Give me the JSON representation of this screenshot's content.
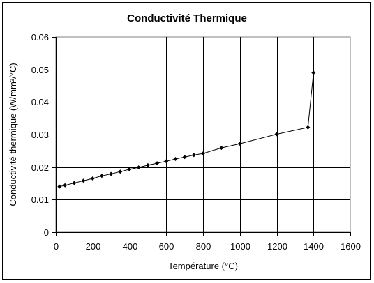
{
  "chart_data": {
    "type": "line",
    "title": "Conductivité Thermique",
    "xlabel": "Température (°C)",
    "ylabel": "Conductivité thermique (W/mm²/°C)",
    "xlim": [
      0,
      1600
    ],
    "ylim": [
      0,
      0.06
    ],
    "x_ticks": [
      0,
      200,
      400,
      600,
      800,
      1000,
      1200,
      1400,
      1600
    ],
    "y_ticks": [
      0,
      0.01,
      0.02,
      0.03,
      0.04,
      0.05,
      0.06
    ],
    "x_tick_labels": [
      "0",
      "200",
      "400",
      "600",
      "800",
      "1000",
      "1200",
      "1400",
      "1600"
    ],
    "y_tick_labels": [
      "0",
      "0.01",
      "0.02",
      "0.03",
      "0.04",
      "0.05",
      "0.06"
    ],
    "grid": true,
    "legend": "none",
    "series": [
      {
        "color": "#000000",
        "marker": "diamond",
        "points": [
          {
            "x": 20,
            "y": 0.014
          },
          {
            "x": 50,
            "y": 0.0144
          },
          {
            "x": 100,
            "y": 0.0151
          },
          {
            "x": 150,
            "y": 0.0158
          },
          {
            "x": 200,
            "y": 0.0165
          },
          {
            "x": 250,
            "y": 0.0173
          },
          {
            "x": 300,
            "y": 0.0179
          },
          {
            "x": 350,
            "y": 0.0186
          },
          {
            "x": 400,
            "y": 0.0193
          },
          {
            "x": 450,
            "y": 0.0199
          },
          {
            "x": 500,
            "y": 0.0206
          },
          {
            "x": 550,
            "y": 0.0212
          },
          {
            "x": 600,
            "y": 0.0218
          },
          {
            "x": 650,
            "y": 0.0225
          },
          {
            "x": 700,
            "y": 0.0231
          },
          {
            "x": 750,
            "y": 0.0237
          },
          {
            "x": 800,
            "y": 0.0242
          },
          {
            "x": 900,
            "y": 0.0259
          },
          {
            "x": 1000,
            "y": 0.0272
          },
          {
            "x": 1200,
            "y": 0.0301
          },
          {
            "x": 1370,
            "y": 0.0322
          },
          {
            "x": 1400,
            "y": 0.049
          }
        ]
      }
    ]
  }
}
